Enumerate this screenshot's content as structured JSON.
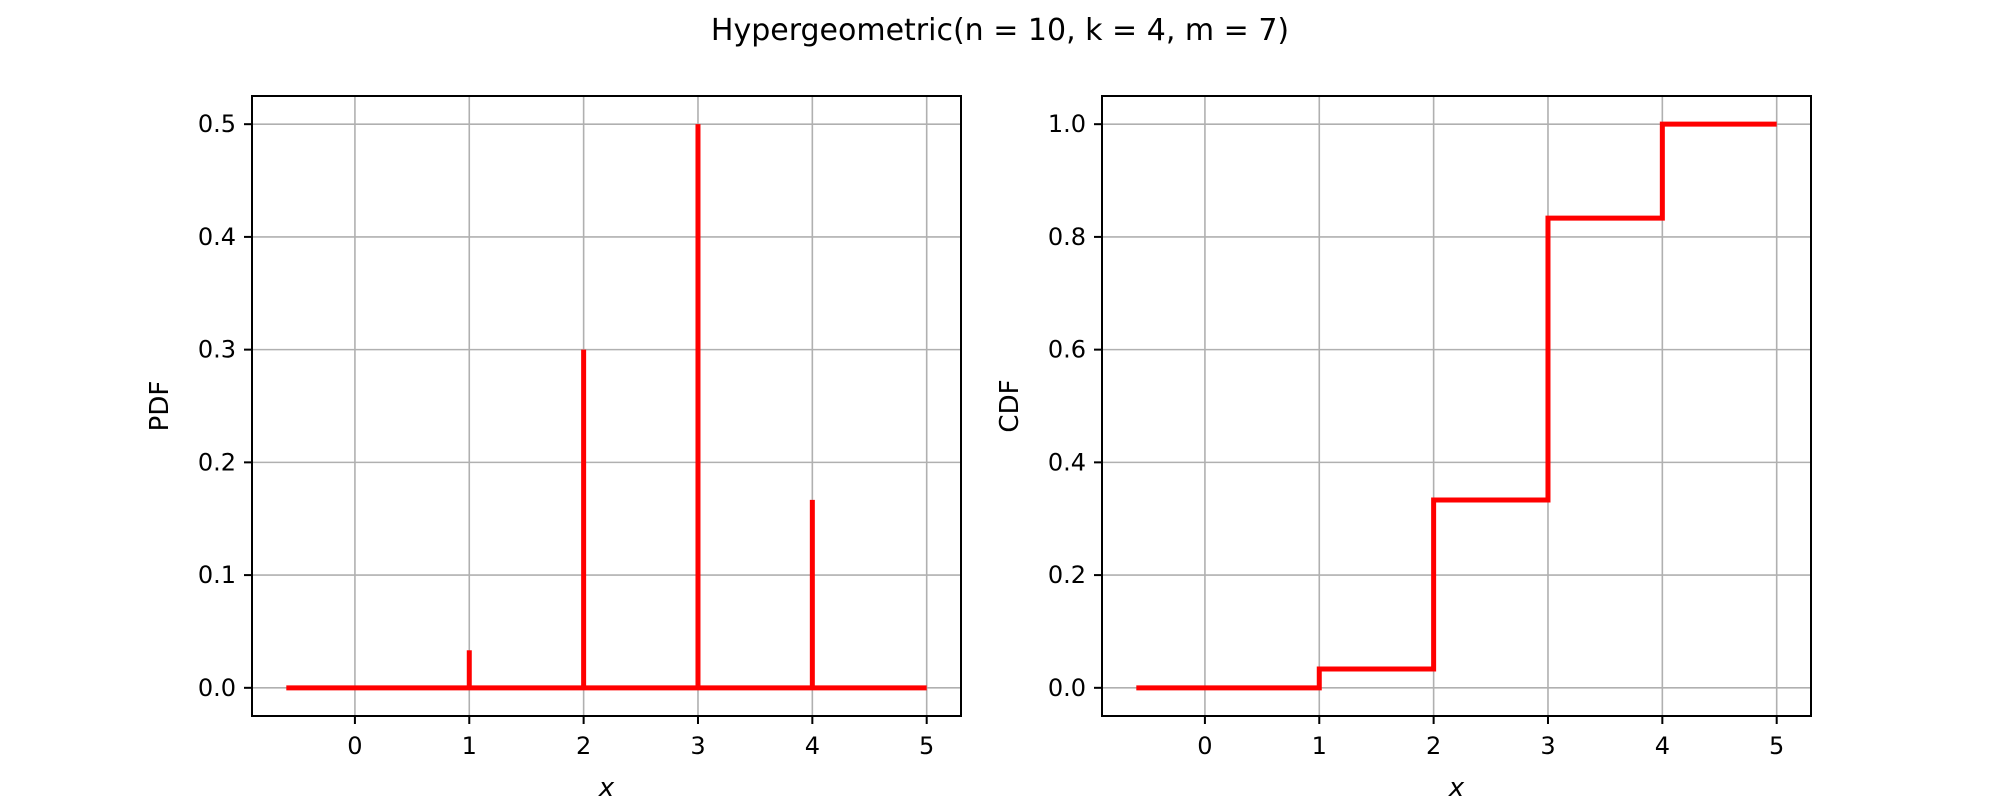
{
  "figure": {
    "title": "Hypergeometric(n = 10, k = 4, m = 7)"
  },
  "colors": {
    "series": "#ff0000",
    "grid": "#b0b0b0",
    "axes": "#000000"
  },
  "chart_data": [
    {
      "type": "line",
      "panel": "left",
      "xlabel": "x",
      "ylabel": "PDF",
      "xlim": [
        -0.9,
        5.3
      ],
      "ylim": [
        -0.025,
        0.525
      ],
      "xticks": [
        0,
        1,
        2,
        3,
        4,
        5
      ],
      "xtick_labels": [
        "0",
        "1",
        "2",
        "3",
        "4",
        "5"
      ],
      "yticks": [
        0.0,
        0.1,
        0.2,
        0.3,
        0.4,
        0.5
      ],
      "ytick_labels": [
        "0.0",
        "0.1",
        "0.2",
        "0.3",
        "0.4",
        "0.5"
      ],
      "grid": true,
      "series": [
        {
          "style": "stem",
          "x_range": [
            -0.6,
            5
          ],
          "x": [
            1,
            2,
            3,
            4
          ],
          "y": [
            0.0333,
            0.3,
            0.5,
            0.1667
          ]
        }
      ]
    },
    {
      "type": "line",
      "panel": "right",
      "xlabel": "x",
      "ylabel": "CDF",
      "xlim": [
        -0.9,
        5.3
      ],
      "ylim": [
        -0.05,
        1.05
      ],
      "xticks": [
        0,
        1,
        2,
        3,
        4,
        5
      ],
      "xtick_labels": [
        "0",
        "1",
        "2",
        "3",
        "4",
        "5"
      ],
      "yticks": [
        0.0,
        0.2,
        0.4,
        0.6,
        0.8,
        1.0
      ],
      "ytick_labels": [
        "0.0",
        "0.2",
        "0.4",
        "0.6",
        "0.8",
        "1.0"
      ],
      "grid": true,
      "series": [
        {
          "style": "step",
          "x": [
            -0.6,
            1,
            1,
            2,
            2,
            3,
            3,
            4,
            4,
            5
          ],
          "y": [
            0.0,
            0.0,
            0.0333,
            0.0333,
            0.3333,
            0.3333,
            0.8333,
            0.8333,
            1.0,
            1.0
          ]
        }
      ]
    }
  ]
}
